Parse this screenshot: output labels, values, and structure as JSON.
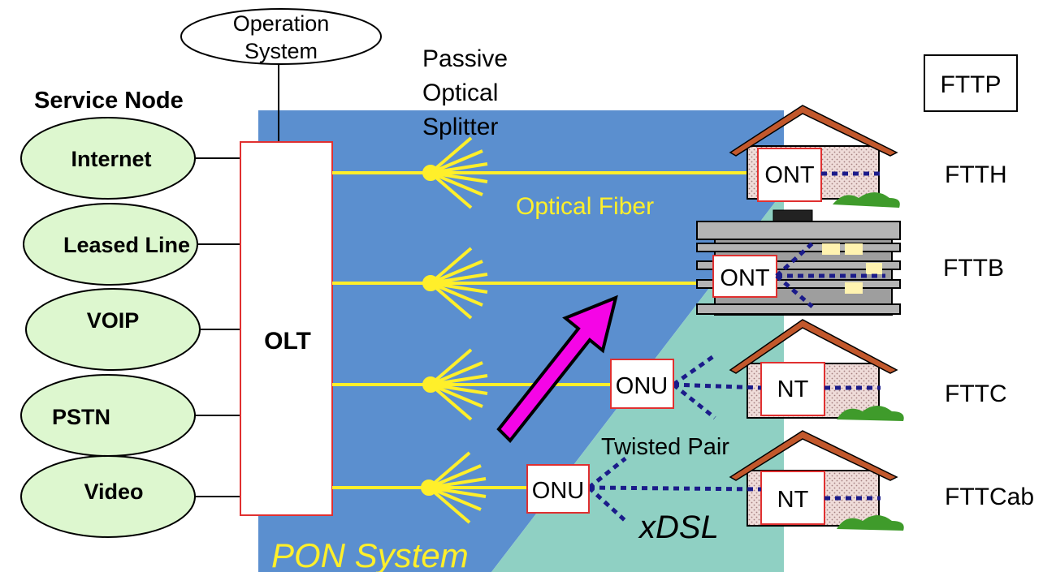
{
  "diagram": {
    "operation_system": [
      "Operation",
      "System"
    ],
    "service_node_title": "Service Node",
    "services": [
      "Internet",
      "Leased Line",
      "VOIP",
      "PSTN",
      "Video"
    ],
    "olt_label": "OLT",
    "splitter_label": [
      "Passive",
      "Optical",
      "Splitter"
    ],
    "optical_fiber_label": "Optical Fiber",
    "twisted_pair_label": "Twisted Pair",
    "xdsl_label": "xDSL",
    "pon_system_label": "PON System",
    "ont_label": "ONT",
    "onu_label": "ONU",
    "nt_label": "NT",
    "fttp_label": "FTTP",
    "access_types": [
      "FTTH",
      "FTTB",
      "FTTC",
      "FTTCab"
    ]
  },
  "colors": {
    "pon_blue": "#5b8fcf",
    "access_green": "#8fd0c3",
    "fiber_yellow": "#ffef2a",
    "service_green": "#ddf7cf",
    "arrow_magenta": "#f505e6",
    "copper_dots": "#1b1b8a",
    "roof": "#c2582c",
    "house_wall": "#e5cfcc",
    "shrub": "#3f9b2b"
  }
}
